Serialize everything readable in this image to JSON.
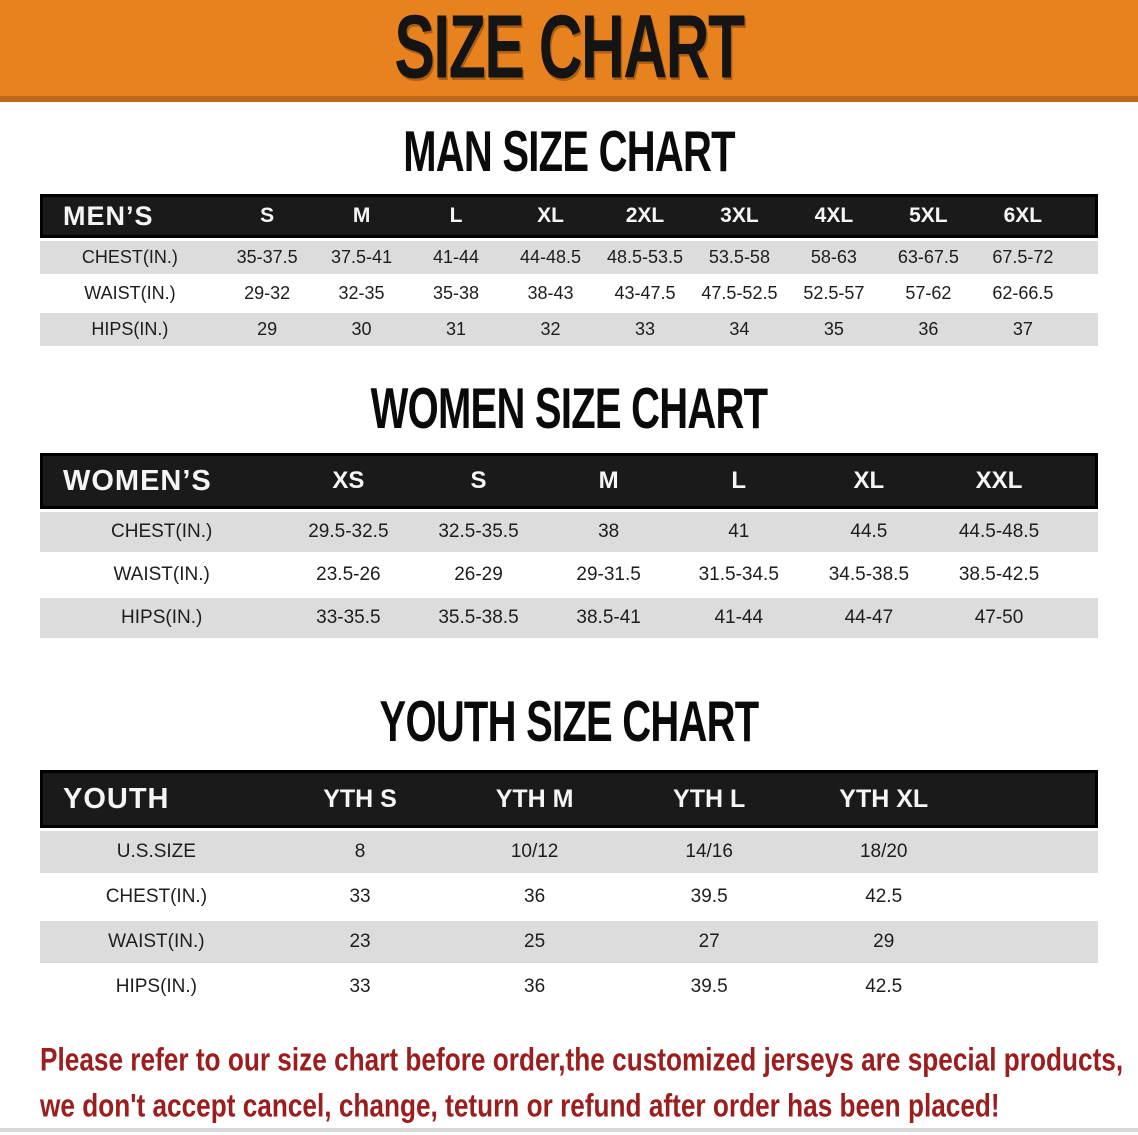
{
  "banner": {
    "title": "SIZE CHART"
  },
  "sections": [
    {
      "heading": "MAN SIZE CHART",
      "table": {
        "header_label": "MEN’S",
        "columns": [
          "S",
          "M",
          "L",
          "XL",
          "2XL",
          "3XL",
          "4XL",
          "5XL",
          "6XL"
        ],
        "rows": [
          {
            "label": "CHEST(IN.)",
            "values": [
              "35-37.5",
              "37.5-41",
              "41-44",
              "44-48.5",
              "48.5-53.5",
              "53.5-58",
              "58-63",
              "63-67.5",
              "67.5-72"
            ]
          },
          {
            "label": "WAIST(IN.)",
            "values": [
              "29-32",
              "32-35",
              "35-38",
              "38-43",
              "43-47.5",
              "47.5-52.5",
              "52.5-57",
              "57-62",
              "62-66.5"
            ]
          },
          {
            "label": "HIPS(IN.)",
            "values": [
              "29",
              "30",
              "31",
              "32",
              "33",
              "34",
              "35",
              "36",
              "37"
            ]
          }
        ]
      }
    },
    {
      "heading": "WOMEN SIZE CHART",
      "table": {
        "header_label": "WOMEN’S",
        "columns": [
          "XS",
          "S",
          "M",
          "L",
          "XL",
          "XXL"
        ],
        "rows": [
          {
            "label": "CHEST(IN.)",
            "values": [
              "29.5-32.5",
              "32.5-35.5",
              "38",
              "41",
              "44.5",
              "44.5-48.5"
            ]
          },
          {
            "label": "WAIST(IN.)",
            "values": [
              "23.5-26",
              "26-29",
              "29-31.5",
              "31.5-34.5",
              "34.5-38.5",
              "38.5-42.5"
            ]
          },
          {
            "label": "HIPS(IN.)",
            "values": [
              "33-35.5",
              "35.5-38.5",
              "38.5-41",
              "41-44",
              "44-47",
              "47-50"
            ]
          }
        ]
      }
    },
    {
      "heading": "YOUTH SIZE CHART",
      "table": {
        "header_label": "YOUTH",
        "columns": [
          "YTH S",
          "YTH M",
          "YTH L",
          "YTH XL"
        ],
        "rows": [
          {
            "label": "U.S.SIZE",
            "values": [
              "8",
              "10/12",
              "14/16",
              "18/20"
            ]
          },
          {
            "label": "CHEST(IN.)",
            "values": [
              "33",
              "36",
              "39.5",
              "42.5"
            ]
          },
          {
            "label": "WAIST(IN.)",
            "values": [
              "23",
              "25",
              "27",
              "29"
            ]
          },
          {
            "label": "HIPS(IN.)",
            "values": [
              "33",
              "36",
              "39.5",
              "42.5"
            ]
          }
        ]
      }
    }
  ],
  "footer": {
    "line1": "Please refer to our size chart before order,the customized jerseys are special products,",
    "line2": "we don't accept cancel, change, teturn or refund after order has been placed!"
  },
  "colors": {
    "banner_orange": "#e8821e",
    "banner_orange_dark": "#bf671a",
    "table_header_black": "#1a1a1a",
    "row_alt_gray": "#dcdcdc",
    "disclaimer_red": "#9b1d1d"
  }
}
